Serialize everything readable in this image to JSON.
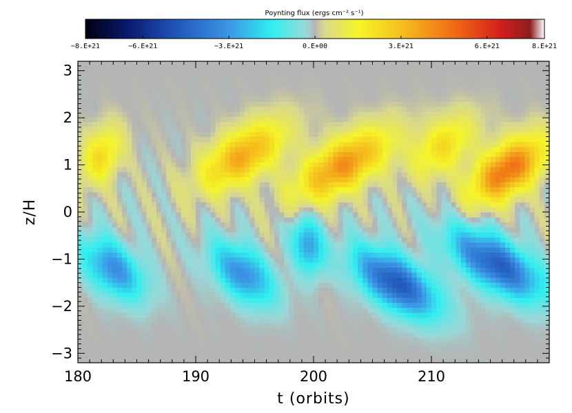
{
  "chart_data": {
    "type": "heatmap",
    "title": "Poynting flux (ergs cm⁻² s⁻¹)",
    "xlabel": "t (orbits)",
    "ylabel": "z/H",
    "xlim": [
      180,
      220
    ],
    "ylim": [
      -3.2,
      3.2
    ],
    "x_ticks": [
      "180",
      "190",
      "200",
      "210"
    ],
    "y_ticks": [
      "3",
      "2",
      "1",
      "0",
      "−1",
      "−2",
      "−3"
    ],
    "x_tick_values": [
      180,
      190,
      200,
      210
    ],
    "y_tick_values": [
      3,
      2,
      1,
      0,
      -1,
      -2,
      -3
    ],
    "colorbar": {
      "range": [
        -8e+21,
        8e+21
      ],
      "tick_labels": [
        "−8.E+21",
        "−6.E+21",
        "−3.E+21",
        "0.E+00",
        "3.E+21",
        "6.E+21",
        "8.E+21"
      ],
      "tick_values": [
        -8e+21,
        -6e+21,
        -3e+21,
        0,
        3e+21,
        6e+21,
        8e+21
      ],
      "colormap_stops": [
        {
          "v": -8e+21,
          "color": "#000010"
        },
        {
          "v": -6.5e+21,
          "color": "#0a1a70"
        },
        {
          "v": -5e+21,
          "color": "#1e50b4"
        },
        {
          "v": -3e+21,
          "color": "#3c96e6"
        },
        {
          "v": -1.5e+21,
          "color": "#30f0f0"
        },
        {
          "v": -3e+20,
          "color": "#9ad8d8"
        },
        {
          "v": 0,
          "color": "#b4b4b4"
        },
        {
          "v": 3e+20,
          "color": "#d8d890"
        },
        {
          "v": 1.5e+21,
          "color": "#f5f528"
        },
        {
          "v": 3e+21,
          "color": "#f5c01e"
        },
        {
          "v": 5e+21,
          "color": "#f06414"
        },
        {
          "v": 6.5e+21,
          "color": "#d21e1e"
        },
        {
          "v": 7.5e+21,
          "color": "#8c1e1e"
        },
        {
          "v": 8e+21,
          "color": "#ffffff"
        }
      ]
    },
    "features": [
      {
        "sign": "positive",
        "t_start": 180,
        "t_end": 184,
        "z_center": 1.2,
        "peak": 2.2e+21
      },
      {
        "sign": "positive",
        "t_start": 190,
        "t_end": 198,
        "z_center": 1.2,
        "peak": 3.5e+21
      },
      {
        "sign": "positive",
        "t_start": 198,
        "t_end": 207,
        "z_center": 1.0,
        "peak": 4e+21
      },
      {
        "sign": "positive",
        "t_start": 208,
        "t_end": 214,
        "z_center": 1.4,
        "peak": 2.2e+21
      },
      {
        "sign": "positive",
        "t_start": 213,
        "t_end": 220,
        "z_center": 0.9,
        "peak": 4.8e+21
      },
      {
        "sign": "negative",
        "t_start": 180,
        "t_end": 186,
        "z_center": -1.2,
        "peak": -3.2e+21
      },
      {
        "sign": "negative",
        "t_start": 191,
        "t_end": 197,
        "z_center": -1.3,
        "peak": -3.3e+21
      },
      {
        "sign": "negative",
        "t_start": 198,
        "t_end": 201,
        "z_center": -0.7,
        "peak": -3e+21
      },
      {
        "sign": "negative",
        "t_start": 203,
        "t_end": 211,
        "z_center": -1.5,
        "peak": -4.8e+21
      },
      {
        "sign": "negative",
        "t_start": 211,
        "t_end": 220,
        "z_center": -1.1,
        "peak": -4.6e+21
      }
    ]
  }
}
